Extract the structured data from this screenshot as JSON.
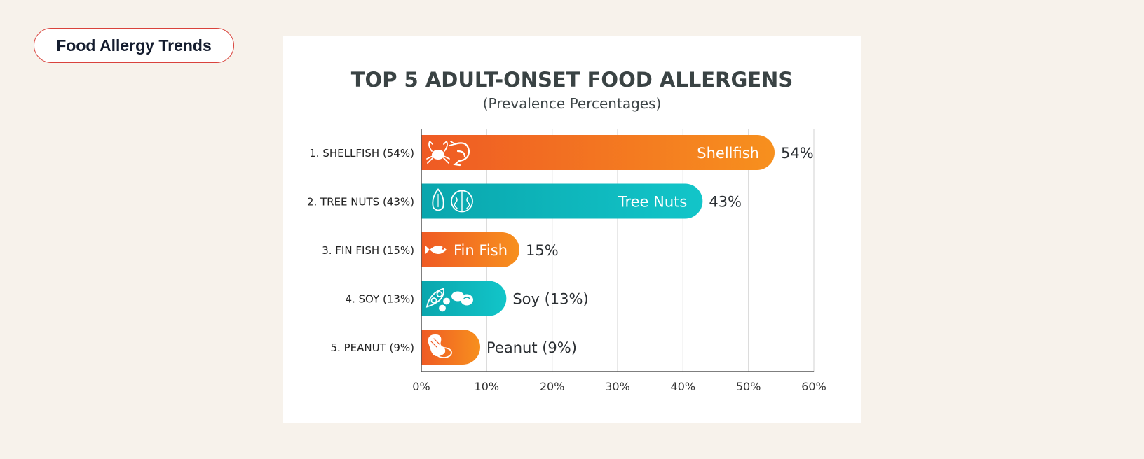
{
  "badge": {
    "label": "Food Allergy Trends"
  },
  "colors": {
    "orange_start": "#ef5a24",
    "orange_end": "#f7901e",
    "teal_start": "#0aa6ad",
    "teal_end": "#12c5c9",
    "text_dark": "#2b2f33",
    "title": "#3a4344",
    "grid": "#d9d9d9",
    "axis": "#555555"
  },
  "chart_data": {
    "type": "bar",
    "orientation": "horizontal",
    "title": "TOP 5 ADULT-ONSET FOOD ALLERGENS",
    "subtitle": "(Prevalence Percentages)",
    "xlim": [
      0,
      60
    ],
    "xticks": [
      0,
      10,
      20,
      30,
      40,
      50,
      60
    ],
    "xtick_labels": [
      "0%",
      "10%",
      "20%",
      "30%",
      "40%",
      "50%",
      "60%"
    ],
    "grid": true,
    "bars": [
      {
        "category": "1. SHELLFISH (54%)",
        "value": 54,
        "inner_label": "Shellfish",
        "value_label": "54%",
        "color": "orange",
        "icons": [
          "crab-icon",
          "shrimp-icon"
        ]
      },
      {
        "category": "2. TREE NUTS (43%)",
        "value": 43,
        "inner_label": "Tree Nuts",
        "value_label": "43%",
        "color": "teal",
        "icons": [
          "almond-icon",
          "walnut-icon"
        ]
      },
      {
        "category": "3. FIN FISH (15%)",
        "value": 15,
        "inner_label": "Fin Fish",
        "value_label": "15%",
        "color": "orange",
        "icons": [
          "fish-icon"
        ]
      },
      {
        "category": "4. SOY (13%)",
        "value": 13,
        "inner_label": "",
        "value_label": "Soy (13%)",
        "color": "teal",
        "icons": [
          "soy-pod-icon",
          "soybean-icon"
        ]
      },
      {
        "category": "5. PEANUT (9%)",
        "value": 9,
        "inner_label": "",
        "value_label": "Peanut (9%)",
        "color": "orange",
        "icons": [
          "peanut-icon"
        ]
      }
    ]
  }
}
